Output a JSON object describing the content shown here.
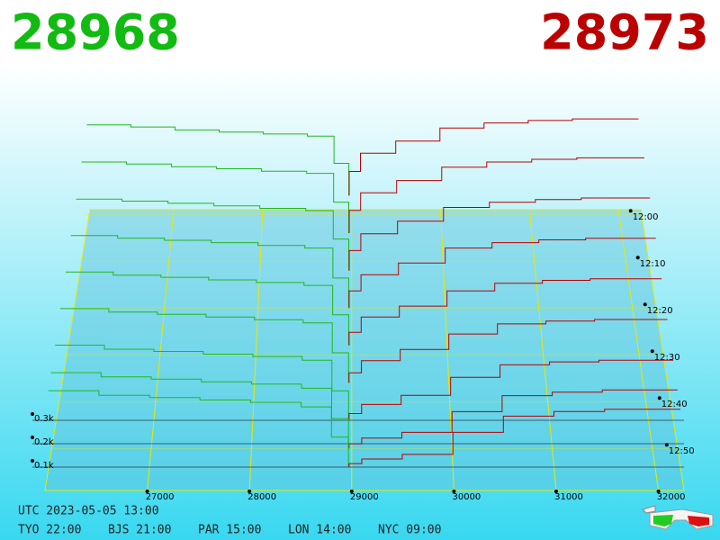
{
  "chart_data": {
    "type": "depth3d",
    "best_bid": 28968,
    "best_ask": 28973,
    "bid_color": "#22b622",
    "ask_color": "#b80000",
    "bid_prices": [
      26000,
      26500,
      27000,
      27500,
      28000,
      28500,
      28800,
      28968
    ],
    "ask_prices": [
      28973,
      29100,
      29500,
      30000,
      30500,
      31000,
      31500,
      32250
    ],
    "slices": [
      {
        "minute": -4,
        "bid": [
          350,
          340,
          325,
          315,
          305,
          295,
          160,
          0
        ],
        "ask": [
          0,
          120,
          210,
          270,
          335,
          360,
          372,
          380
        ]
      },
      {
        "minute": 4,
        "bid": [
          345,
          335,
          322,
          312,
          300,
          290,
          150,
          0
        ],
        "ask": [
          0,
          110,
          195,
          255,
          320,
          345,
          358,
          365
        ]
      },
      {
        "minute": 12,
        "bid": [
          340,
          330,
          320,
          308,
          296,
          285,
          150,
          0
        ],
        "ask": [
          0,
          95,
          175,
          235,
          300,
          325,
          338,
          345
        ]
      },
      {
        "minute": 20,
        "bid": [
          338,
          326,
          316,
          305,
          292,
          280,
          140,
          0
        ],
        "ask": [
          0,
          80,
          155,
          210,
          280,
          305,
          318,
          325
        ]
      },
      {
        "minute": 28,
        "bid": [
          336,
          322,
          312,
          300,
          288,
          275,
          140,
          0
        ],
        "ask": [
          0,
          60,
          130,
          180,
          250,
          285,
          298,
          305
        ]
      },
      {
        "minute": 36,
        "bid": [
          334,
          318,
          308,
          296,
          284,
          270,
          135,
          0
        ],
        "ask": [
          0,
          45,
          100,
          150,
          220,
          265,
          278,
          285
        ]
      },
      {
        "minute": 44,
        "bid": [
          332,
          314,
          304,
          292,
          282,
          265,
          130,
          0
        ],
        "ask": [
          0,
          30,
          70,
          110,
          190,
          245,
          258,
          265
        ]
      },
      {
        "minute": 50,
        "bid": [
          330,
          312,
          302,
          290,
          280,
          262,
          130,
          0
        ],
        "ask": [
          0,
          20,
          45,
          70,
          160,
          230,
          245,
          255
        ]
      },
      {
        "minute": 54,
        "bid": [
          330,
          310,
          300,
          290,
          280,
          260,
          130,
          0
        ],
        "ask": [
          0,
          15,
          35,
          55,
          150,
          220,
          240,
          250
        ]
      }
    ],
    "xlim": [
      26000,
      32250
    ],
    "xticks": [
      27000,
      28000,
      29000,
      30000,
      31000,
      32000
    ],
    "ylim": [
      0,
      1000
    ],
    "yticks": [
      {
        "value": 100,
        "label": "0.1k"
      },
      {
        "value": 200,
        "label": "0.2k"
      },
      {
        "value": 300,
        "label": "0.3k"
      }
    ],
    "zlim": [
      -1,
      59
    ],
    "zticks": [
      {
        "value": 0,
        "label": "12:00"
      },
      {
        "value": 10,
        "label": "12:10"
      },
      {
        "value": 20,
        "label": "12:20"
      },
      {
        "value": 30,
        "label": "12:30"
      },
      {
        "value": 40,
        "label": "12:40"
      },
      {
        "value": 50,
        "label": "12:50"
      }
    ]
  },
  "footer": {
    "utc": "UTC 2023-05-05 13:00",
    "zones": [
      "TYO 22:00",
      "BJS 21:00",
      "PAR 15:00",
      "LON 14:00",
      "NYC 09:00"
    ]
  }
}
